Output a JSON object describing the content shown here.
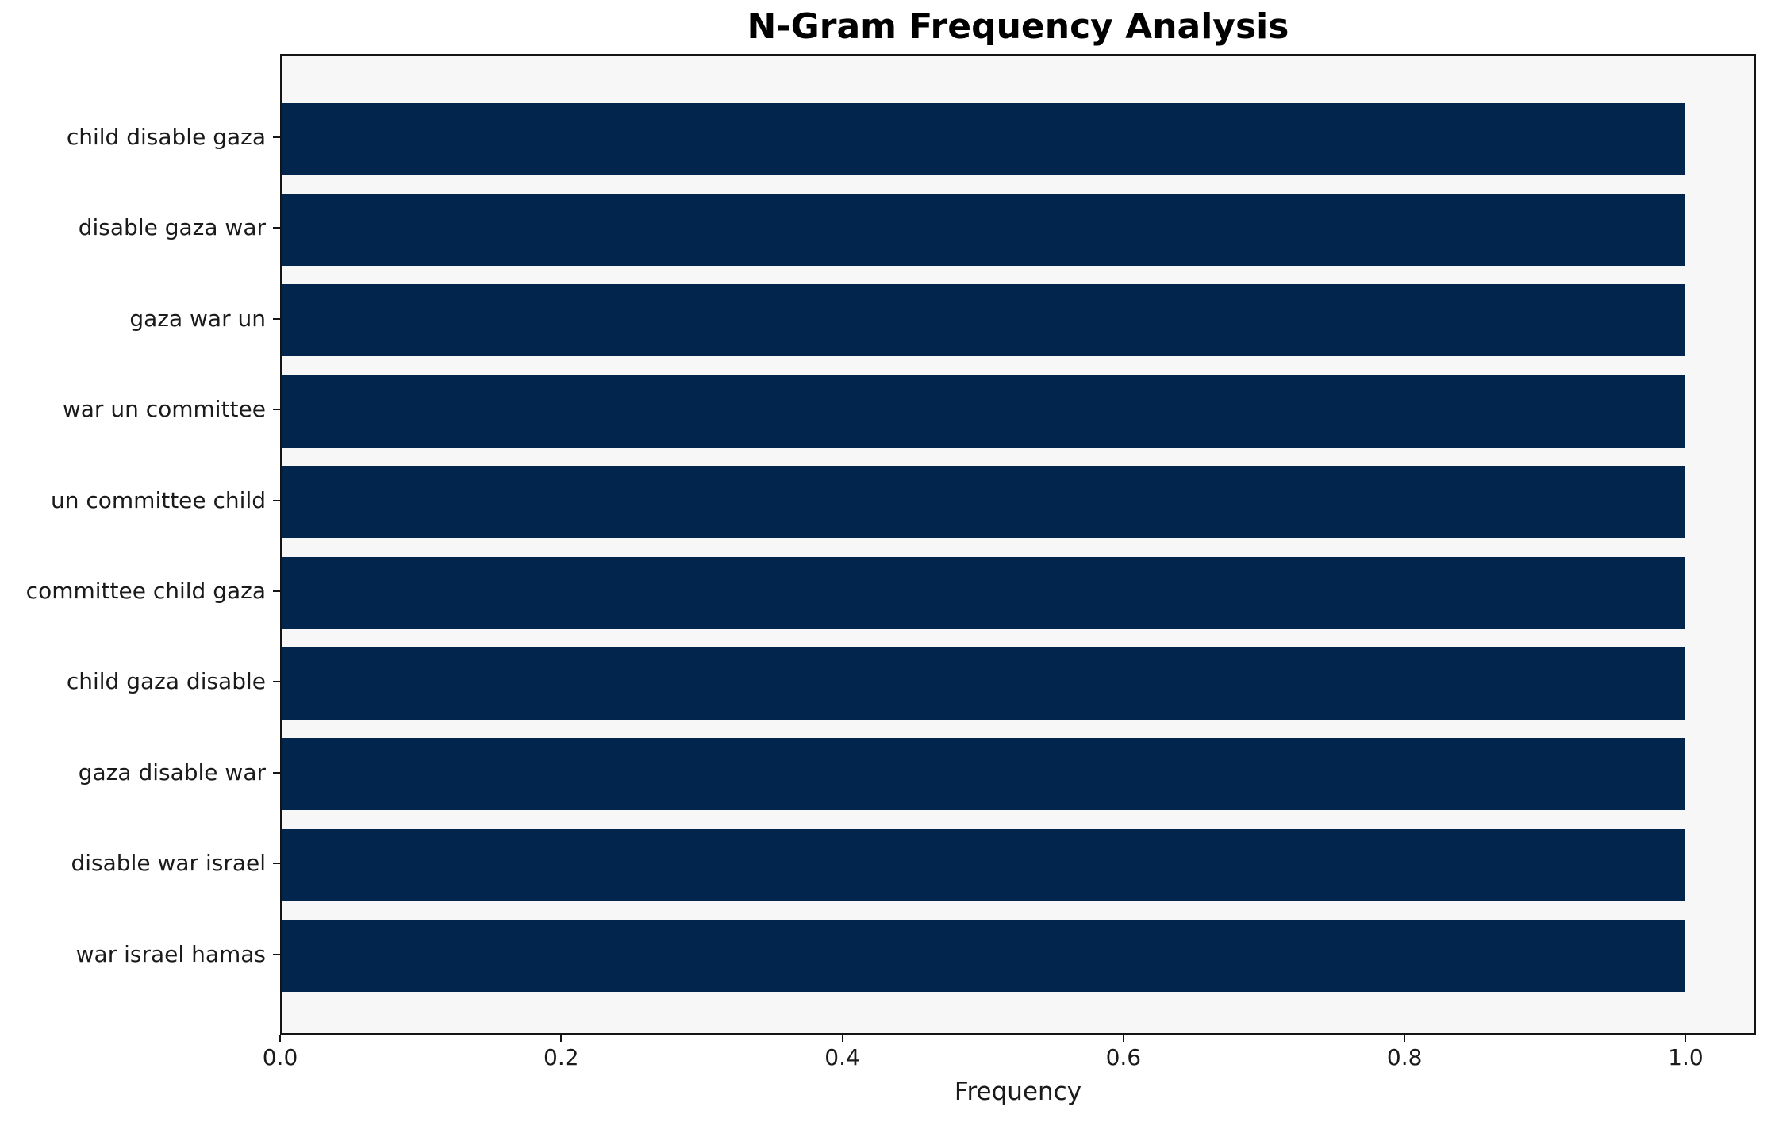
{
  "figure": {
    "background": "#ffffff",
    "spine_color": "#141414",
    "text_color": "#1a1a1a"
  },
  "chart_data": {
    "type": "bar",
    "orientation": "horizontal",
    "title": "N-Gram Frequency Analysis",
    "xlabel": "Frequency",
    "ylabel": "",
    "categories": [
      "child disable gaza",
      "disable gaza war",
      "gaza war un",
      "war un committee",
      "un committee child",
      "committee child gaza",
      "child gaza disable",
      "gaza disable war",
      "disable war israel",
      "war israel hamas"
    ],
    "values": [
      1.0,
      1.0,
      1.0,
      1.0,
      1.0,
      1.0,
      1.0,
      1.0,
      1.0,
      1.0
    ],
    "xlim": [
      0,
      1.05
    ],
    "xticks": [
      0.0,
      0.2,
      0.4,
      0.6,
      0.8,
      1.0
    ],
    "xtick_labels": [
      "0.0",
      "0.2",
      "0.4",
      "0.6",
      "0.8",
      "1.0"
    ],
    "bar_color": "#02254e",
    "plot_background": "#f7f7f8",
    "grid": false
  }
}
